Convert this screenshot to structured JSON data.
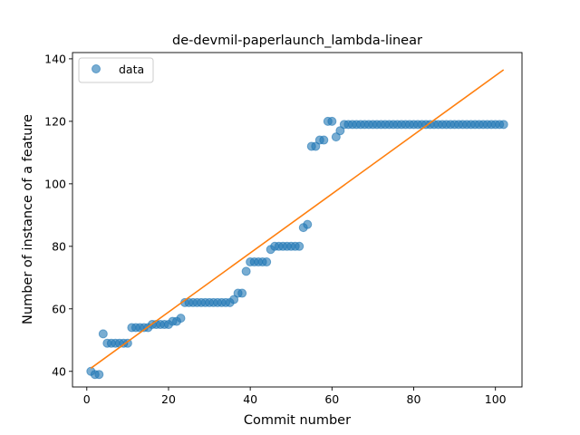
{
  "chart_data": {
    "type": "scatter",
    "title": "de-devmil-paperlaunch_lambda-linear",
    "xlabel": "Commit number",
    "ylabel": "Number of instance of a feature",
    "xlim": [
      -3.5,
      106.5
    ],
    "ylim": [
      35,
      142
    ],
    "xticks": [
      0,
      20,
      40,
      60,
      80,
      100
    ],
    "yticks": [
      40,
      60,
      80,
      100,
      120,
      140
    ],
    "legend": {
      "placement": "top-left",
      "entries": [
        "data"
      ]
    },
    "colors": {
      "data": "#1f77b4",
      "fit": "#ff7f0e"
    },
    "series": [
      {
        "name": "data",
        "kind": "scatter",
        "points": [
          [
            1,
            40
          ],
          [
            2,
            39
          ],
          [
            3,
            39
          ],
          [
            4,
            52
          ],
          [
            5,
            49
          ],
          [
            6,
            49
          ],
          [
            7,
            49
          ],
          [
            8,
            49
          ],
          [
            9,
            49
          ],
          [
            10,
            49
          ],
          [
            11,
            54
          ],
          [
            12,
            54
          ],
          [
            13,
            54
          ],
          [
            14,
            54
          ],
          [
            15,
            54
          ],
          [
            16,
            55
          ],
          [
            17,
            55
          ],
          [
            18,
            55
          ],
          [
            19,
            55
          ],
          [
            20,
            55
          ],
          [
            21,
            56
          ],
          [
            22,
            56
          ],
          [
            23,
            57
          ],
          [
            24,
            62
          ],
          [
            25,
            62
          ],
          [
            26,
            62
          ],
          [
            27,
            62
          ],
          [
            28,
            62
          ],
          [
            29,
            62
          ],
          [
            30,
            62
          ],
          [
            31,
            62
          ],
          [
            32,
            62
          ],
          [
            33,
            62
          ],
          [
            34,
            62
          ],
          [
            35,
            62
          ],
          [
            36,
            63
          ],
          [
            37,
            65
          ],
          [
            38,
            65
          ],
          [
            39,
            72
          ],
          [
            40,
            75
          ],
          [
            41,
            75
          ],
          [
            42,
            75
          ],
          [
            43,
            75
          ],
          [
            44,
            75
          ],
          [
            45,
            79
          ],
          [
            46,
            80
          ],
          [
            47,
            80
          ],
          [
            48,
            80
          ],
          [
            49,
            80
          ],
          [
            50,
            80
          ],
          [
            51,
            80
          ],
          [
            52,
            80
          ],
          [
            53,
            86
          ],
          [
            54,
            87
          ],
          [
            55,
            112
          ],
          [
            56,
            112
          ],
          [
            57,
            114
          ],
          [
            58,
            114
          ],
          [
            59,
            120
          ],
          [
            60,
            120
          ],
          [
            61,
            115
          ],
          [
            62,
            117
          ],
          [
            63,
            119
          ],
          [
            64,
            119
          ],
          [
            65,
            119
          ],
          [
            66,
            119
          ],
          [
            67,
            119
          ],
          [
            68,
            119
          ],
          [
            69,
            119
          ],
          [
            70,
            119
          ],
          [
            71,
            119
          ],
          [
            72,
            119
          ],
          [
            73,
            119
          ],
          [
            74,
            119
          ],
          [
            75,
            119
          ],
          [
            76,
            119
          ],
          [
            77,
            119
          ],
          [
            78,
            119
          ],
          [
            79,
            119
          ],
          [
            80,
            119
          ],
          [
            81,
            119
          ],
          [
            82,
            119
          ],
          [
            83,
            119
          ],
          [
            84,
            119
          ],
          [
            85,
            119
          ],
          [
            86,
            119
          ],
          [
            87,
            119
          ],
          [
            88,
            119
          ],
          [
            89,
            119
          ],
          [
            90,
            119
          ],
          [
            91,
            119
          ],
          [
            92,
            119
          ],
          [
            93,
            119
          ],
          [
            94,
            119
          ],
          [
            95,
            119
          ],
          [
            96,
            119
          ],
          [
            97,
            119
          ],
          [
            98,
            119
          ],
          [
            99,
            119
          ],
          [
            100,
            119
          ],
          [
            101,
            119
          ],
          [
            102,
            119
          ]
        ]
      },
      {
        "kind": "line",
        "points": [
          [
            1,
            41
          ],
          [
            102,
            136.5
          ]
        ]
      }
    ]
  }
}
